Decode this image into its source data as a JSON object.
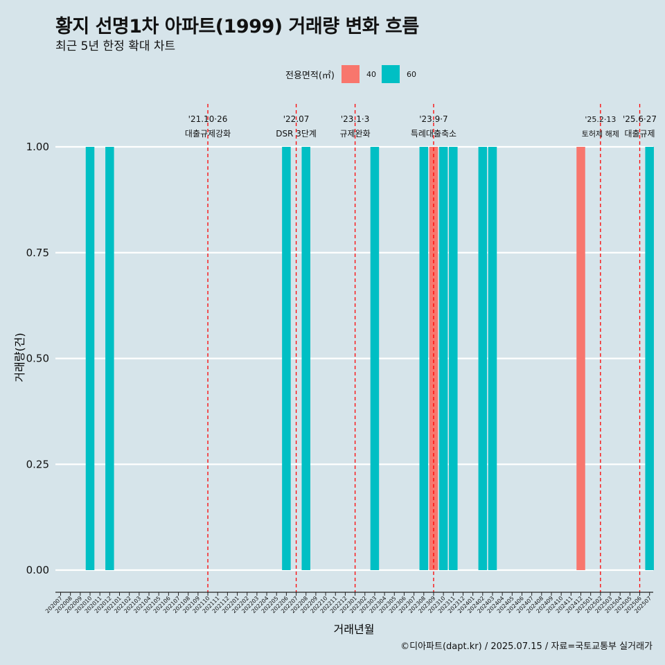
{
  "title": "황지 선명1차 아파트(1999) 거래량 변화 흐름",
  "subtitle": "최근 5년 한정 확대 차트",
  "legend": {
    "title": "전용면적(㎡)",
    "items": [
      {
        "label": "40",
        "color": "#f8766d"
      },
      {
        "label": "60",
        "color": "#00bfc4"
      }
    ]
  },
  "caption": "©디아파트(dapt.kr) / 2025.07.15 / 자료=국토교통부 실거래가",
  "chart_data": {
    "type": "bar",
    "xlabel": "거래년월",
    "ylabel": "거래량(건)",
    "ylim": [
      0,
      1
    ],
    "yticks": [
      "0.00",
      "0.25",
      "0.50",
      "0.75",
      "1.00"
    ],
    "grid": true,
    "legend_position": "top",
    "categories": [
      "202007",
      "202008",
      "202009",
      "202010",
      "202011",
      "202012",
      "202101",
      "202102",
      "202103",
      "202104",
      "202105",
      "202106",
      "202107",
      "202108",
      "202109",
      "202110",
      "202111",
      "202112",
      "202201",
      "202202",
      "202203",
      "202204",
      "202205",
      "202206",
      "202207",
      "202208",
      "202209",
      "202210",
      "202211",
      "202212",
      "202301",
      "202302",
      "202303",
      "202304",
      "202305",
      "202306",
      "202307",
      "202308",
      "202309",
      "202310",
      "202311",
      "202312",
      "202401",
      "202402",
      "202403",
      "202404",
      "202405",
      "202406",
      "202407",
      "202408",
      "202409",
      "202410",
      "202411",
      "202412",
      "202501",
      "202502",
      "202503",
      "202504",
      "202505",
      "202506",
      "202507"
    ],
    "bars": [
      {
        "x": "202010",
        "area": "60",
        "value": 1
      },
      {
        "x": "202012",
        "area": "60",
        "value": 1
      },
      {
        "x": "202206",
        "area": "60",
        "value": 1
      },
      {
        "x": "202208",
        "area": "60",
        "value": 1
      },
      {
        "x": "202303",
        "area": "60",
        "value": 1
      },
      {
        "x": "202308",
        "area": "60",
        "value": 1
      },
      {
        "x": "202309",
        "area": "40",
        "value": 1
      },
      {
        "x": "202310",
        "area": "60",
        "value": 1
      },
      {
        "x": "202311",
        "area": "60",
        "value": 1
      },
      {
        "x": "202402",
        "area": "60",
        "value": 1
      },
      {
        "x": "202403",
        "area": "60",
        "value": 1
      },
      {
        "x": "202412",
        "area": "40",
        "value": 1
      },
      {
        "x": "202507",
        "area": "60",
        "value": 1
      }
    ],
    "annotations": [
      {
        "x": "202110",
        "date": "'21.10·26",
        "label": "대출규제강화"
      },
      {
        "x": "202207",
        "date": "'22.07",
        "label": "DSR 3단계"
      },
      {
        "x": "202301",
        "date": "'23.1·3",
        "label": "규제완화"
      },
      {
        "x": "202309",
        "date": "'23.9·7",
        "label": "특례대출축소"
      },
      {
        "x": "202502",
        "date": "'25.2·13",
        "label": "토허제 해제"
      },
      {
        "x": "202506",
        "date": "'25.6·27",
        "label": "대출규제"
      }
    ]
  }
}
